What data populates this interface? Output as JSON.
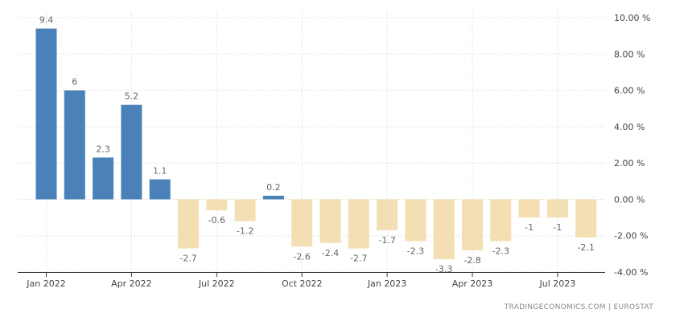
{
  "chart_data": {
    "type": "bar",
    "categories": [
      "Jan 2022",
      "Feb 2022",
      "Mar 2022",
      "Apr 2022",
      "May 2022",
      "Jun 2022",
      "Jul 2022",
      "Aug 2022",
      "Sep 2022",
      "Oct 2022",
      "Nov 2022",
      "Dec 2022",
      "Jan 2023",
      "Feb 2023",
      "Mar 2023",
      "Apr 2023",
      "May 2023",
      "Jun 2023",
      "Jul 2023",
      "Aug 2023"
    ],
    "values": [
      9.4,
      6,
      2.3,
      5.2,
      1.1,
      -2.7,
      -0.6,
      -1.2,
      0.2,
      -2.6,
      -2.4,
      -2.7,
      -1.7,
      -2.3,
      -3.3,
      -2.8,
      -2.3,
      -1,
      -1,
      -2.1
    ],
    "value_labels": [
      "9.4",
      "6",
      "2.3",
      "5.2",
      "1.1",
      "-2.7",
      "-0.6",
      "-1.2",
      "0.2",
      "-2.6",
      "-2.4",
      "-2.7",
      "-1.7",
      "-2.3",
      "-3.3",
      "-2.8",
      "-2.3",
      "-1",
      "-1",
      "-2.1"
    ],
    "x_tick_labels": [
      {
        "index": 0,
        "label": "Jan 2022"
      },
      {
        "index": 3,
        "label": "Apr 2022"
      },
      {
        "index": 6,
        "label": "Jul 2022"
      },
      {
        "index": 9,
        "label": "Oct 2022"
      },
      {
        "index": 12,
        "label": "Jan 2023"
      },
      {
        "index": 15,
        "label": "Apr 2023"
      },
      {
        "index": 18,
        "label": "Jul 2023"
      }
    ],
    "y_ticks": [
      10,
      8,
      6,
      4,
      2,
      0,
      -2,
      -4
    ],
    "y_tick_labels": [
      "10.00 %",
      "8.00 %",
      "6.00 %",
      "4.00 %",
      "2.00 %",
      "0.00 %",
      "-2.00 %",
      "-4.00 %"
    ],
    "ylim": [
      -4,
      10
    ],
    "grid": true,
    "y_axis_position": "right",
    "title": "",
    "xlabel": "",
    "ylabel": "",
    "colors": {
      "positive": "#4a81b9",
      "negative": "#f4dfb4",
      "grid": "#e3e3e3",
      "axis": "#333333"
    }
  },
  "footer": {
    "source_left": "TRADINGECONOMICS.COM",
    "separator": "|",
    "source_right": "EUROSTAT"
  }
}
